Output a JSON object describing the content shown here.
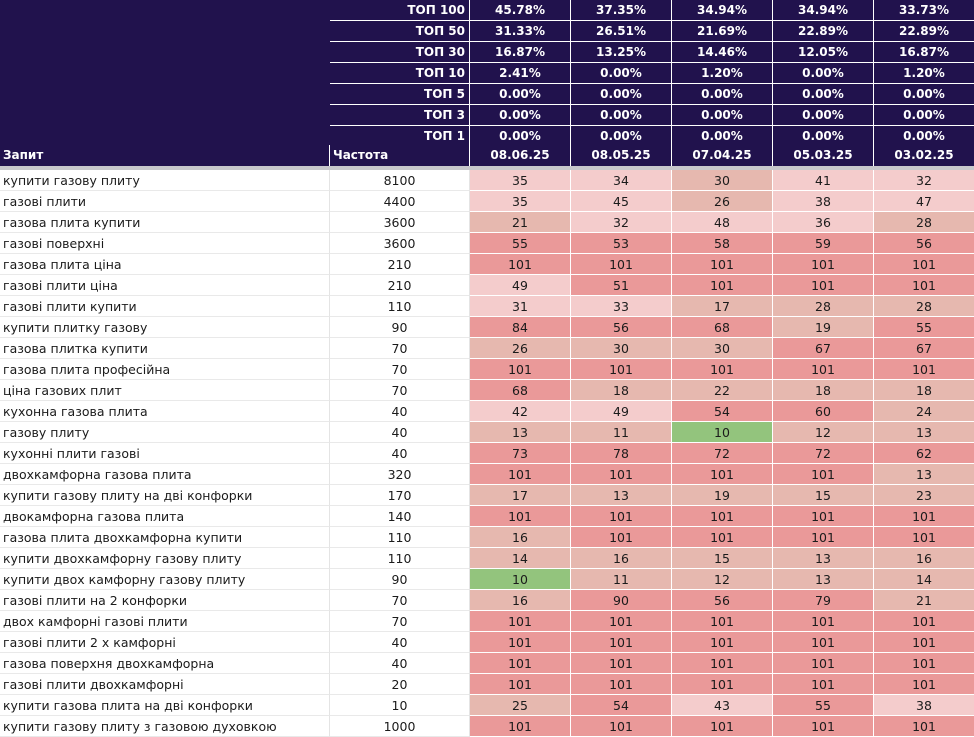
{
  "summary": [
    {
      "label": "ТОП 100",
      "values": [
        "45.78%",
        "37.35%",
        "34.94%",
        "34.94%",
        "33.73%"
      ]
    },
    {
      "label": "ТОП 50",
      "values": [
        "31.33%",
        "26.51%",
        "21.69%",
        "22.89%",
        "22.89%"
      ]
    },
    {
      "label": "ТОП 30",
      "values": [
        "16.87%",
        "13.25%",
        "14.46%",
        "12.05%",
        "16.87%"
      ]
    },
    {
      "label": "ТОП 10",
      "values": [
        "2.41%",
        "0.00%",
        "1.20%",
        "0.00%",
        "1.20%"
      ]
    },
    {
      "label": "ТОП 5",
      "values": [
        "0.00%",
        "0.00%",
        "0.00%",
        "0.00%",
        "0.00%"
      ]
    },
    {
      "label": "ТОП 3",
      "values": [
        "0.00%",
        "0.00%",
        "0.00%",
        "0.00%",
        "0.00%"
      ]
    },
    {
      "label": "ТОП 1",
      "values": [
        "0.00%",
        "0.00%",
        "0.00%",
        "0.00%",
        "0.00%"
      ]
    }
  ],
  "header": {
    "query": "Запит",
    "frequency": "Частота",
    "dates": [
      "08.06.25",
      "08.05.25",
      "07.04.25",
      "05.03.25",
      "03.02.25"
    ]
  },
  "colors": {
    "header_bg": "#21124d",
    "green": "#93c47d",
    "light": "#f4cccc",
    "mid": "#e6b8af",
    "red": "#ea9999"
  },
  "rows": [
    {
      "query": "купити газову плиту",
      "freq": "8100",
      "pos": [
        "35",
        "34",
        "30",
        "41",
        "32"
      ],
      "shade": [
        "light",
        "light",
        "mid",
        "light",
        "light"
      ]
    },
    {
      "query": "газові плити",
      "freq": "4400",
      "pos": [
        "35",
        "45",
        "26",
        "38",
        "47"
      ],
      "shade": [
        "light",
        "light",
        "mid",
        "light",
        "light"
      ]
    },
    {
      "query": "газова плита купити",
      "freq": "3600",
      "pos": [
        "21",
        "32",
        "48",
        "36",
        "28"
      ],
      "shade": [
        "mid",
        "light",
        "light",
        "light",
        "mid"
      ]
    },
    {
      "query": "газові поверхні",
      "freq": "3600",
      "pos": [
        "55",
        "53",
        "58",
        "59",
        "56"
      ],
      "shade": [
        "red",
        "red",
        "red",
        "red",
        "red"
      ]
    },
    {
      "query": "газова плита ціна",
      "freq": "210",
      "pos": [
        "101",
        "101",
        "101",
        "101",
        "101"
      ],
      "shade": [
        "red",
        "red",
        "red",
        "red",
        "red"
      ]
    },
    {
      "query": "газові плити ціна",
      "freq": "210",
      "pos": [
        "49",
        "51",
        "101",
        "101",
        "101"
      ],
      "shade": [
        "light",
        "red",
        "red",
        "red",
        "red"
      ]
    },
    {
      "query": "газові плити купити",
      "freq": "110",
      "pos": [
        "31",
        "33",
        "17",
        "28",
        "28"
      ],
      "shade": [
        "light",
        "light",
        "mid",
        "mid",
        "mid"
      ]
    },
    {
      "query": "купити плитку газову",
      "freq": "90",
      "pos": [
        "84",
        "56",
        "68",
        "19",
        "55"
      ],
      "shade": [
        "red",
        "red",
        "red",
        "mid",
        "red"
      ]
    },
    {
      "query": "газова плитка купити",
      "freq": "70",
      "pos": [
        "26",
        "30",
        "30",
        "67",
        "67"
      ],
      "shade": [
        "mid",
        "mid",
        "mid",
        "red",
        "red"
      ]
    },
    {
      "query": "газова плита професійна",
      "freq": "70",
      "pos": [
        "101",
        "101",
        "101",
        "101",
        "101"
      ],
      "shade": [
        "red",
        "red",
        "red",
        "red",
        "red"
      ]
    },
    {
      "query": "ціна газових плит",
      "freq": "70",
      "pos": [
        "68",
        "18",
        "22",
        "18",
        "18"
      ],
      "shade": [
        "red",
        "mid",
        "mid",
        "mid",
        "mid"
      ]
    },
    {
      "query": "кухонна газова плита",
      "freq": "40",
      "pos": [
        "42",
        "49",
        "54",
        "60",
        "24"
      ],
      "shade": [
        "light",
        "light",
        "red",
        "red",
        "mid"
      ]
    },
    {
      "query": "газову плиту",
      "freq": "40",
      "pos": [
        "13",
        "11",
        "10",
        "12",
        "13"
      ],
      "shade": [
        "mid",
        "mid",
        "green",
        "mid",
        "mid"
      ]
    },
    {
      "query": "кухонні плити газові",
      "freq": "40",
      "pos": [
        "73",
        "78",
        "72",
        "72",
        "62"
      ],
      "shade": [
        "red",
        "red",
        "red",
        "red",
        "red"
      ]
    },
    {
      "query": "двохкамфорна газова плита",
      "freq": "320",
      "pos": [
        "101",
        "101",
        "101",
        "101",
        "13"
      ],
      "shade": [
        "red",
        "red",
        "red",
        "red",
        "mid"
      ]
    },
    {
      "query": "купити газову плиту на дві конфорки",
      "freq": "170",
      "pos": [
        "17",
        "13",
        "19",
        "15",
        "23"
      ],
      "shade": [
        "mid",
        "mid",
        "mid",
        "mid",
        "mid"
      ]
    },
    {
      "query": "двокамфорна газова плита",
      "freq": "140",
      "pos": [
        "101",
        "101",
        "101",
        "101",
        "101"
      ],
      "shade": [
        "red",
        "red",
        "red",
        "red",
        "red"
      ]
    },
    {
      "query": "газова плита двохкамфорна купити",
      "freq": "110",
      "pos": [
        "16",
        "101",
        "101",
        "101",
        "101"
      ],
      "shade": [
        "mid",
        "red",
        "red",
        "red",
        "red"
      ]
    },
    {
      "query": "купити двохкамфорну газову плиту",
      "freq": "110",
      "pos": [
        "14",
        "16",
        "15",
        "13",
        "16"
      ],
      "shade": [
        "mid",
        "mid",
        "mid",
        "mid",
        "mid"
      ]
    },
    {
      "query": "купити двох камфорну газову плиту",
      "freq": "90",
      "pos": [
        "10",
        "11",
        "12",
        "13",
        "14"
      ],
      "shade": [
        "green",
        "mid",
        "mid",
        "mid",
        "mid"
      ]
    },
    {
      "query": "газові плити на 2 конфорки",
      "freq": "70",
      "pos": [
        "16",
        "90",
        "56",
        "79",
        "21"
      ],
      "shade": [
        "mid",
        "red",
        "red",
        "red",
        "mid"
      ]
    },
    {
      "query": "двох камфорні газові плити",
      "freq": "70",
      "pos": [
        "101",
        "101",
        "101",
        "101",
        "101"
      ],
      "shade": [
        "red",
        "red",
        "red",
        "red",
        "red"
      ]
    },
    {
      "query": "газові плити 2 х камфорні",
      "freq": "40",
      "pos": [
        "101",
        "101",
        "101",
        "101",
        "101"
      ],
      "shade": [
        "red",
        "red",
        "red",
        "red",
        "red"
      ]
    },
    {
      "query": "газова поверхня двохкамфорна",
      "freq": "40",
      "pos": [
        "101",
        "101",
        "101",
        "101",
        "101"
      ],
      "shade": [
        "red",
        "red",
        "red",
        "red",
        "red"
      ]
    },
    {
      "query": "газові плити двохкамфорні",
      "freq": "20",
      "pos": [
        "101",
        "101",
        "101",
        "101",
        "101"
      ],
      "shade": [
        "red",
        "red",
        "red",
        "red",
        "red"
      ]
    },
    {
      "query": "купити газова плита на дві конфорки",
      "freq": "10",
      "pos": [
        "25",
        "54",
        "43",
        "55",
        "38"
      ],
      "shade": [
        "mid",
        "red",
        "light",
        "red",
        "light"
      ]
    },
    {
      "query": "купити газову плиту з газовою духовкою",
      "freq": "1000",
      "pos": [
        "101",
        "101",
        "101",
        "101",
        "101"
      ],
      "shade": [
        "red",
        "red",
        "red",
        "red",
        "red"
      ]
    }
  ]
}
